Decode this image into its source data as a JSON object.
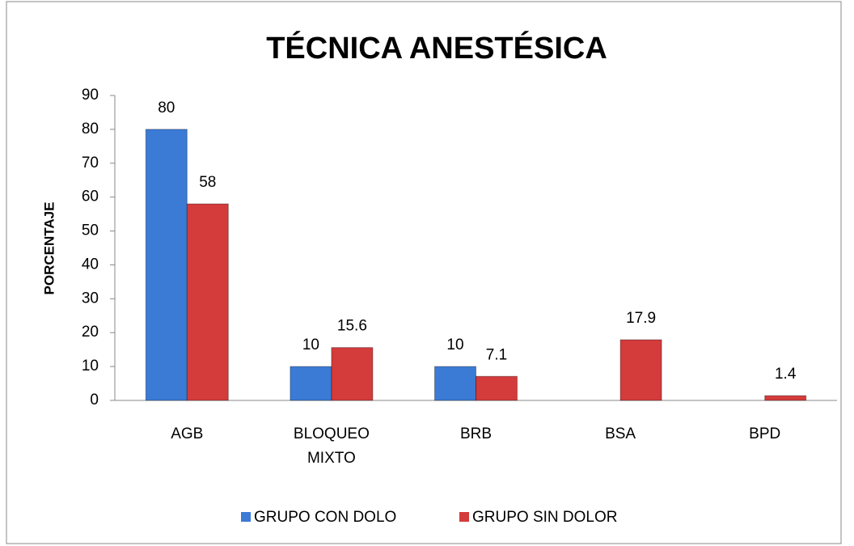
{
  "chart_data": {
    "type": "bar",
    "title": "TÉCNICA ANESTÉSICA",
    "y_label": "PORCENTAJE",
    "categories": [
      "AGB",
      "BLOQUEO MIXTO",
      "BRB",
      "BSA",
      "BPD"
    ],
    "series": [
      {
        "name": "GRUPO CON DOLO",
        "color": "#3b7bd6",
        "values": [
          80,
          10,
          10,
          null,
          null
        ]
      },
      {
        "name": "GRUPO SIN DOLOR",
        "color": "#d43b3b",
        "values": [
          58,
          15.6,
          7.1,
          17.9,
          1.4
        ]
      }
    ],
    "ylim": [
      0,
      90
    ],
    "yticks": [
      0,
      10,
      20,
      30,
      40,
      50,
      60,
      70,
      80,
      90
    ],
    "grid": false,
    "legend": "bottom"
  }
}
